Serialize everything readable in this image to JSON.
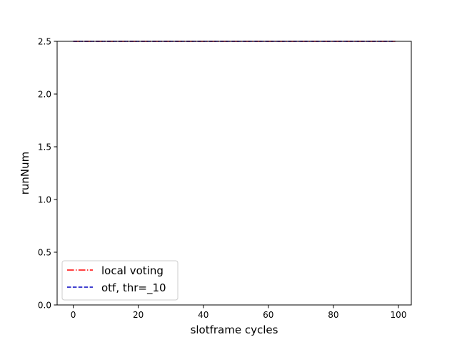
{
  "chart_data": {
    "type": "line",
    "title": "",
    "xlabel": "slotframe cycles",
    "ylabel": "runNum",
    "xlim": [
      -4.95,
      103.95
    ],
    "ylim": [
      0.0,
      2.5
    ],
    "x_ticks": [
      0,
      20,
      40,
      60,
      80,
      100
    ],
    "y_ticks": [
      0.0,
      0.5,
      1.0,
      1.5,
      2.0,
      2.5
    ],
    "x_tick_labels": [
      "0",
      "20",
      "40",
      "60",
      "80",
      "100"
    ],
    "y_tick_labels": [
      "0.0",
      "0.5",
      "1.0",
      "1.5",
      "2.0",
      "2.5"
    ],
    "grid": false,
    "legend_position": "lower-left",
    "x": [
      0,
      99
    ],
    "series": [
      {
        "name": "local voting",
        "values": [
          2.5,
          2.5
        ],
        "color": "#ff0000",
        "linestyle": "dash-dot"
      },
      {
        "name": "otf, thr=_10",
        "values": [
          2.5,
          2.5
        ],
        "color": "#0000bf",
        "linestyle": "dashed"
      }
    ]
  }
}
